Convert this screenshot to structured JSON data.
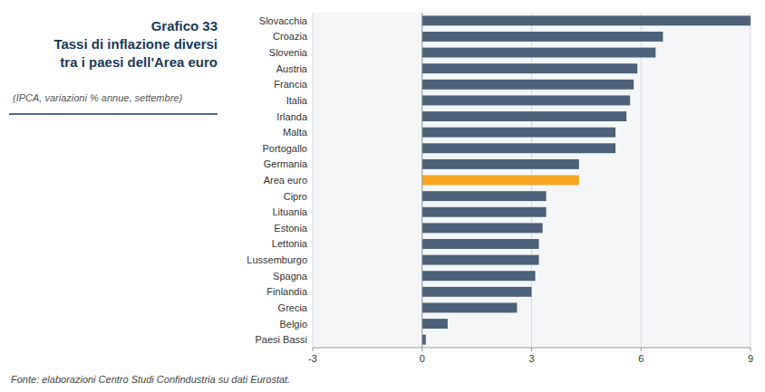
{
  "chart_data": {
    "type": "bar",
    "orientation": "horizontal",
    "title": [
      "Grafico 33",
      "Tassi di inflazione diversi",
      "tra i paesi dell'Area euro"
    ],
    "subtitle": "(IPCA, variazioni % annue, settembre)",
    "annotations": [
      "Fonte: elaborazioni Centro Studi Confindustria su dati Eurostat."
    ],
    "categories": [
      "Slovacchia",
      "Croazia",
      "Slovenia",
      "Austria",
      "Francia",
      "Italia",
      "Irlanda",
      "Malta",
      "Portogallo",
      "Germania",
      "Area euro",
      "Cipro",
      "Lituania",
      "Estonia",
      "Lettonia",
      "Lussemburgo",
      "Spagna",
      "Finlandia",
      "Grecia",
      "Belgio",
      "Paesi Bassi"
    ],
    "values": [
      9.0,
      6.6,
      6.4,
      5.9,
      5.8,
      5.7,
      5.6,
      5.3,
      5.3,
      4.3,
      4.3,
      3.4,
      3.4,
      3.3,
      3.2,
      3.2,
      3.1,
      3.0,
      2.6,
      0.7,
      0.1
    ],
    "colors": [
      "#4d6278",
      "#4d6278",
      "#4d6278",
      "#4d6278",
      "#4d6278",
      "#4d6278",
      "#4d6278",
      "#4d6278",
      "#4d6278",
      "#4d6278",
      "#f5a623",
      "#4d6278",
      "#4d6278",
      "#4d6278",
      "#4d6278",
      "#4d6278",
      "#4d6278",
      "#4d6278",
      "#4d6278",
      "#4d6278",
      "#4d6278"
    ],
    "xlim": [
      -3,
      9
    ],
    "xticks": [
      -3,
      0,
      3,
      6,
      9
    ],
    "grid": true
  }
}
